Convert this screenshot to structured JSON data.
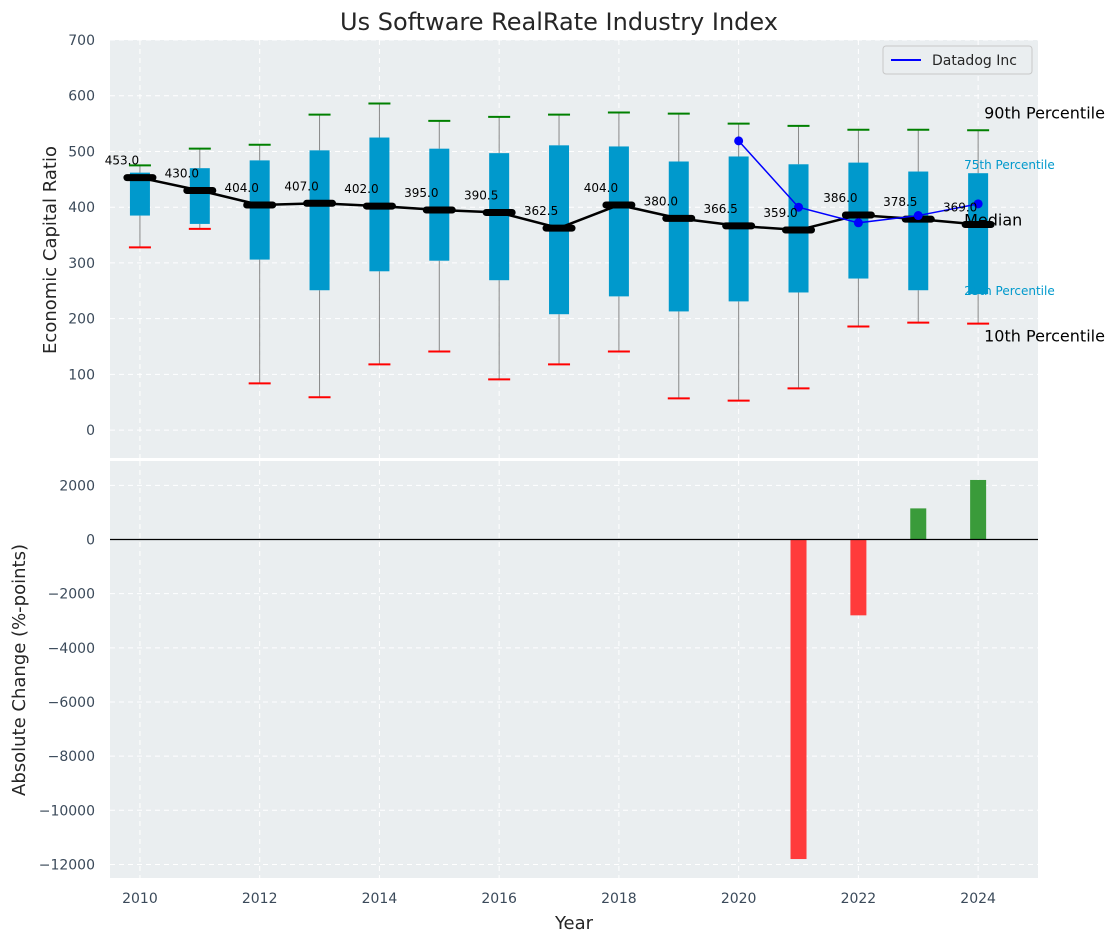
{
  "chart_data": [
    {
      "type": "box",
      "title": "Us Software RealRate Industry Index",
      "ylabel": "Economic Capital Ratio",
      "xlabel": "",
      "ylim": [
        -50,
        700
      ],
      "xlim": [
        2009.5,
        2025
      ],
      "yticks": [
        0,
        100,
        200,
        300,
        400,
        500,
        600,
        700
      ],
      "grid": true,
      "legend_position": "top-right",
      "box_color": "#0099cc",
      "median_color": "#000000",
      "p90_color": "#008000",
      "p10_color": "#ff0000",
      "company_color": "#0000ff",
      "years": [
        2010,
        2011,
        2012,
        2013,
        2014,
        2015,
        2016,
        2017,
        2018,
        2019,
        2020,
        2021,
        2022,
        2023,
        2024
      ],
      "p10": [
        328,
        361,
        84,
        59,
        118,
        141,
        91,
        118,
        141,
        57,
        53,
        75,
        186,
        193,
        191
      ],
      "p25": [
        385,
        370,
        306,
        251,
        285,
        304,
        269,
        208,
        240,
        213,
        231,
        247,
        272,
        251,
        244
      ],
      "median": [
        453.0,
        430.0,
        404.0,
        407.0,
        402.0,
        395.0,
        390.5,
        362.5,
        404.0,
        380.0,
        366.5,
        359.0,
        386.0,
        378.5,
        369.0
      ],
      "median_labels": [
        "453.0",
        "430.0",
        "404.0",
        "407.0",
        "402.0",
        "395.0",
        "390.5",
        "362.5",
        "404.0",
        "380.0",
        "366.5",
        "359.0",
        "386.0",
        "378.5",
        "369.0"
      ],
      "p75": [
        462,
        470,
        484,
        502,
        525,
        505,
        497,
        511,
        509,
        482,
        491,
        477,
        480,
        464,
        461
      ],
      "p90": [
        475,
        505,
        512,
        566,
        586,
        555,
        562,
        566,
        570,
        568,
        550,
        546,
        539,
        539,
        538
      ],
      "company": {
        "name": "Datadog Inc",
        "years": [
          2020,
          2021,
          2022,
          2023,
          2024
        ],
        "values": [
          519,
          400,
          372,
          385,
          406
        ]
      },
      "annotations": {
        "p90": "90th Percentile",
        "p75": "75th Percentile",
        "median": "Median",
        "p25": "25th Percentile",
        "p10": "10th Percentile"
      }
    },
    {
      "type": "bar",
      "title": "",
      "xlabel": "Year",
      "ylabel": "Absolute Change (%-points)",
      "ylim": [
        -12500,
        2900
      ],
      "yticks": [
        2000,
        0,
        -2000,
        -4000,
        -6000,
        -8000,
        -10000,
        -12000
      ],
      "ytick_labels": [
        "2000",
        "0",
        "−2000",
        "−4000",
        "−6000",
        "−8000",
        "−10000",
        "−12000"
      ],
      "xticks": [
        2010,
        2012,
        2014,
        2016,
        2018,
        2020,
        2022,
        2024
      ],
      "grid": true,
      "positive_color": "#3a9b3a",
      "negative_color": "#ff3b3b",
      "x": [
        2021,
        2022,
        2023,
        2024
      ],
      "values": [
        -11800,
        -2800,
        1150,
        2200
      ]
    }
  ]
}
